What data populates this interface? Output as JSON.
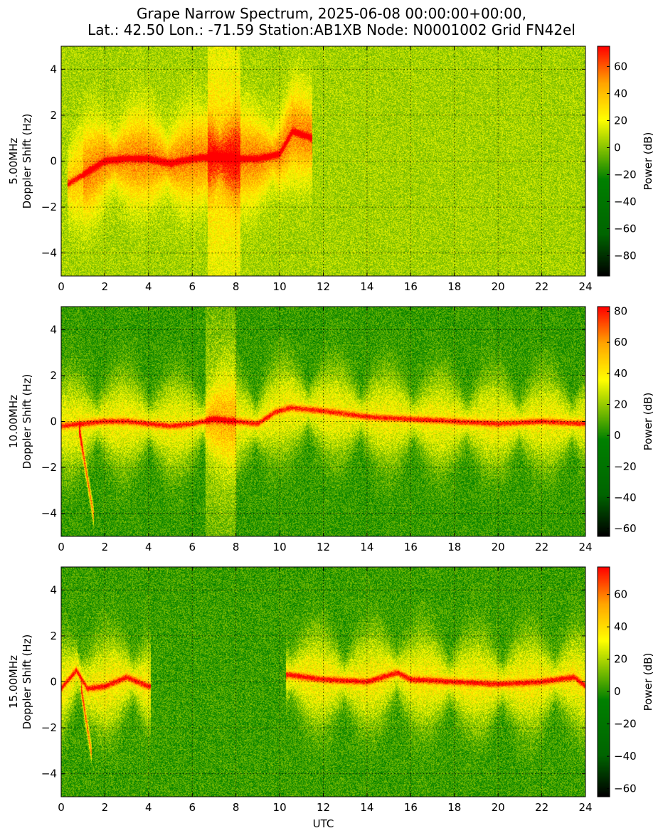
{
  "title": {
    "line1": "Grape Narrow Spectrum, 2025-06-08 00:00:00+00:00,",
    "line2": "Lat.: 42.50 Lon.: -71.59 Station:AB1XB Node: N0001002 Grid FN42el"
  },
  "colors": {
    "colormap": [
      "#000000",
      "#006400",
      "#008000",
      "#ffff00",
      "#ffa500",
      "#ff0000"
    ],
    "background": "#ffffff"
  },
  "chart_data": [
    {
      "type": "heatmap",
      "name": "5.00MHz",
      "ylabel_line1": "5.00MHz",
      "ylabel_line2": "Doppler Shift (Hz)",
      "xlabel": "",
      "xlim": [
        0,
        24
      ],
      "ylim": [
        -5,
        5
      ],
      "x_ticks": [
        0,
        2,
        4,
        6,
        8,
        10,
        12,
        14,
        16,
        18,
        20,
        22,
        24
      ],
      "y_ticks": [
        -4,
        -2,
        0,
        2,
        4
      ],
      "grid": true,
      "colorbar": {
        "label": "Power (dB)",
        "min": -95,
        "max": 75,
        "ticks": [
          -80,
          -60,
          -40,
          -20,
          0,
          20,
          40,
          60
        ]
      },
      "noise_floor_db": 5,
      "carrier_track": [
        [
          0.3,
          -1.0
        ],
        [
          1.0,
          -0.6
        ],
        [
          2.0,
          0.0
        ],
        [
          3.0,
          0.1
        ],
        [
          4.0,
          0.1
        ],
        [
          5.0,
          -0.1
        ],
        [
          6.0,
          0.1
        ],
        [
          7.0,
          0.2
        ],
        [
          8.0,
          0.1
        ],
        [
          9.0,
          0.1
        ],
        [
          10.0,
          0.3
        ],
        [
          10.6,
          1.3
        ],
        [
          11.5,
          1.0
        ]
      ],
      "features": [
        {
          "t0": 6.7,
          "t1": 8.2,
          "desc": "broadband vertical band",
          "level_db": 28
        },
        {
          "t0": 1.0,
          "t1": 11.5,
          "desc": "spread envelope",
          "level_db": 30
        }
      ]
    },
    {
      "type": "heatmap",
      "name": "10.00MHz",
      "ylabel_line1": "10.00MHz",
      "ylabel_line2": "Doppler Shift (Hz)",
      "xlabel": "",
      "xlim": [
        0,
        24
      ],
      "ylim": [
        -5,
        5
      ],
      "x_ticks": [
        0,
        2,
        4,
        6,
        8,
        10,
        12,
        14,
        16,
        18,
        20,
        22,
        24
      ],
      "y_ticks": [
        -4,
        -2,
        0,
        2,
        4
      ],
      "grid": true,
      "colorbar": {
        "label": "Power (dB)",
        "min": -65,
        "max": 83,
        "ticks": [
          -60,
          -40,
          -20,
          0,
          20,
          40,
          60,
          80
        ]
      },
      "noise_floor_db": 5,
      "carrier_track": [
        [
          0.0,
          -0.2
        ],
        [
          1.0,
          -0.1
        ],
        [
          2.0,
          0.0
        ],
        [
          3.0,
          0.0
        ],
        [
          4.0,
          -0.1
        ],
        [
          5.0,
          -0.2
        ],
        [
          6.0,
          -0.1
        ],
        [
          7.0,
          0.1
        ],
        [
          8.0,
          0.0
        ],
        [
          9.0,
          -0.1
        ],
        [
          9.8,
          0.4
        ],
        [
          10.5,
          0.6
        ],
        [
          11.5,
          0.5
        ],
        [
          12.5,
          0.4
        ],
        [
          14.0,
          0.2
        ],
        [
          16.0,
          0.1
        ],
        [
          18.0,
          0.0
        ],
        [
          20.0,
          -0.1
        ],
        [
          22.0,
          0.0
        ],
        [
          24.0,
          -0.1
        ]
      ],
      "features": [
        {
          "t0": 0.8,
          "t1": 1.5,
          "desc": "descending red trace to -4 Hz",
          "level_db": 60
        },
        {
          "t0": 6.6,
          "t1": 8.0,
          "desc": "faint vertical band",
          "level_db": 20
        }
      ]
    },
    {
      "type": "heatmap",
      "name": "15.00MHz",
      "ylabel_line1": "15.00MHz",
      "ylabel_line2": "Doppler Shift (Hz)",
      "xlabel": "UTC",
      "xlim": [
        0,
        24
      ],
      "ylim": [
        -5,
        5
      ],
      "x_ticks": [
        0,
        2,
        4,
        6,
        8,
        10,
        12,
        14,
        16,
        18,
        20,
        22,
        24
      ],
      "y_ticks": [
        -4,
        -2,
        0,
        2,
        4
      ],
      "grid": true,
      "colorbar": {
        "label": "Power (dB)",
        "min": -65,
        "max": 77,
        "ticks": [
          -60,
          -40,
          -20,
          0,
          20,
          40,
          60
        ]
      },
      "noise_floor_db": 3,
      "carrier_track": [
        [
          0.0,
          -0.3
        ],
        [
          0.7,
          0.5
        ],
        [
          1.2,
          -0.3
        ],
        [
          2.0,
          -0.2
        ],
        [
          3.0,
          0.2
        ],
        [
          4.0,
          -0.2
        ],
        [
          10.4,
          0.3
        ],
        [
          12.0,
          0.1
        ],
        [
          14.0,
          0.0
        ],
        [
          15.4,
          0.4
        ],
        [
          16.0,
          0.1
        ],
        [
          18.0,
          0.0
        ],
        [
          20.0,
          -0.1
        ],
        [
          22.0,
          0.0
        ],
        [
          23.5,
          0.2
        ],
        [
          24.0,
          -0.2
        ]
      ],
      "features": [
        {
          "t0": 0.9,
          "t1": 1.4,
          "desc": "descending red trace to -3 Hz",
          "level_db": 55
        },
        {
          "t0": 4.1,
          "t1": 10.3,
          "desc": "signal dropout",
          "level_db": 0
        }
      ]
    }
  ]
}
